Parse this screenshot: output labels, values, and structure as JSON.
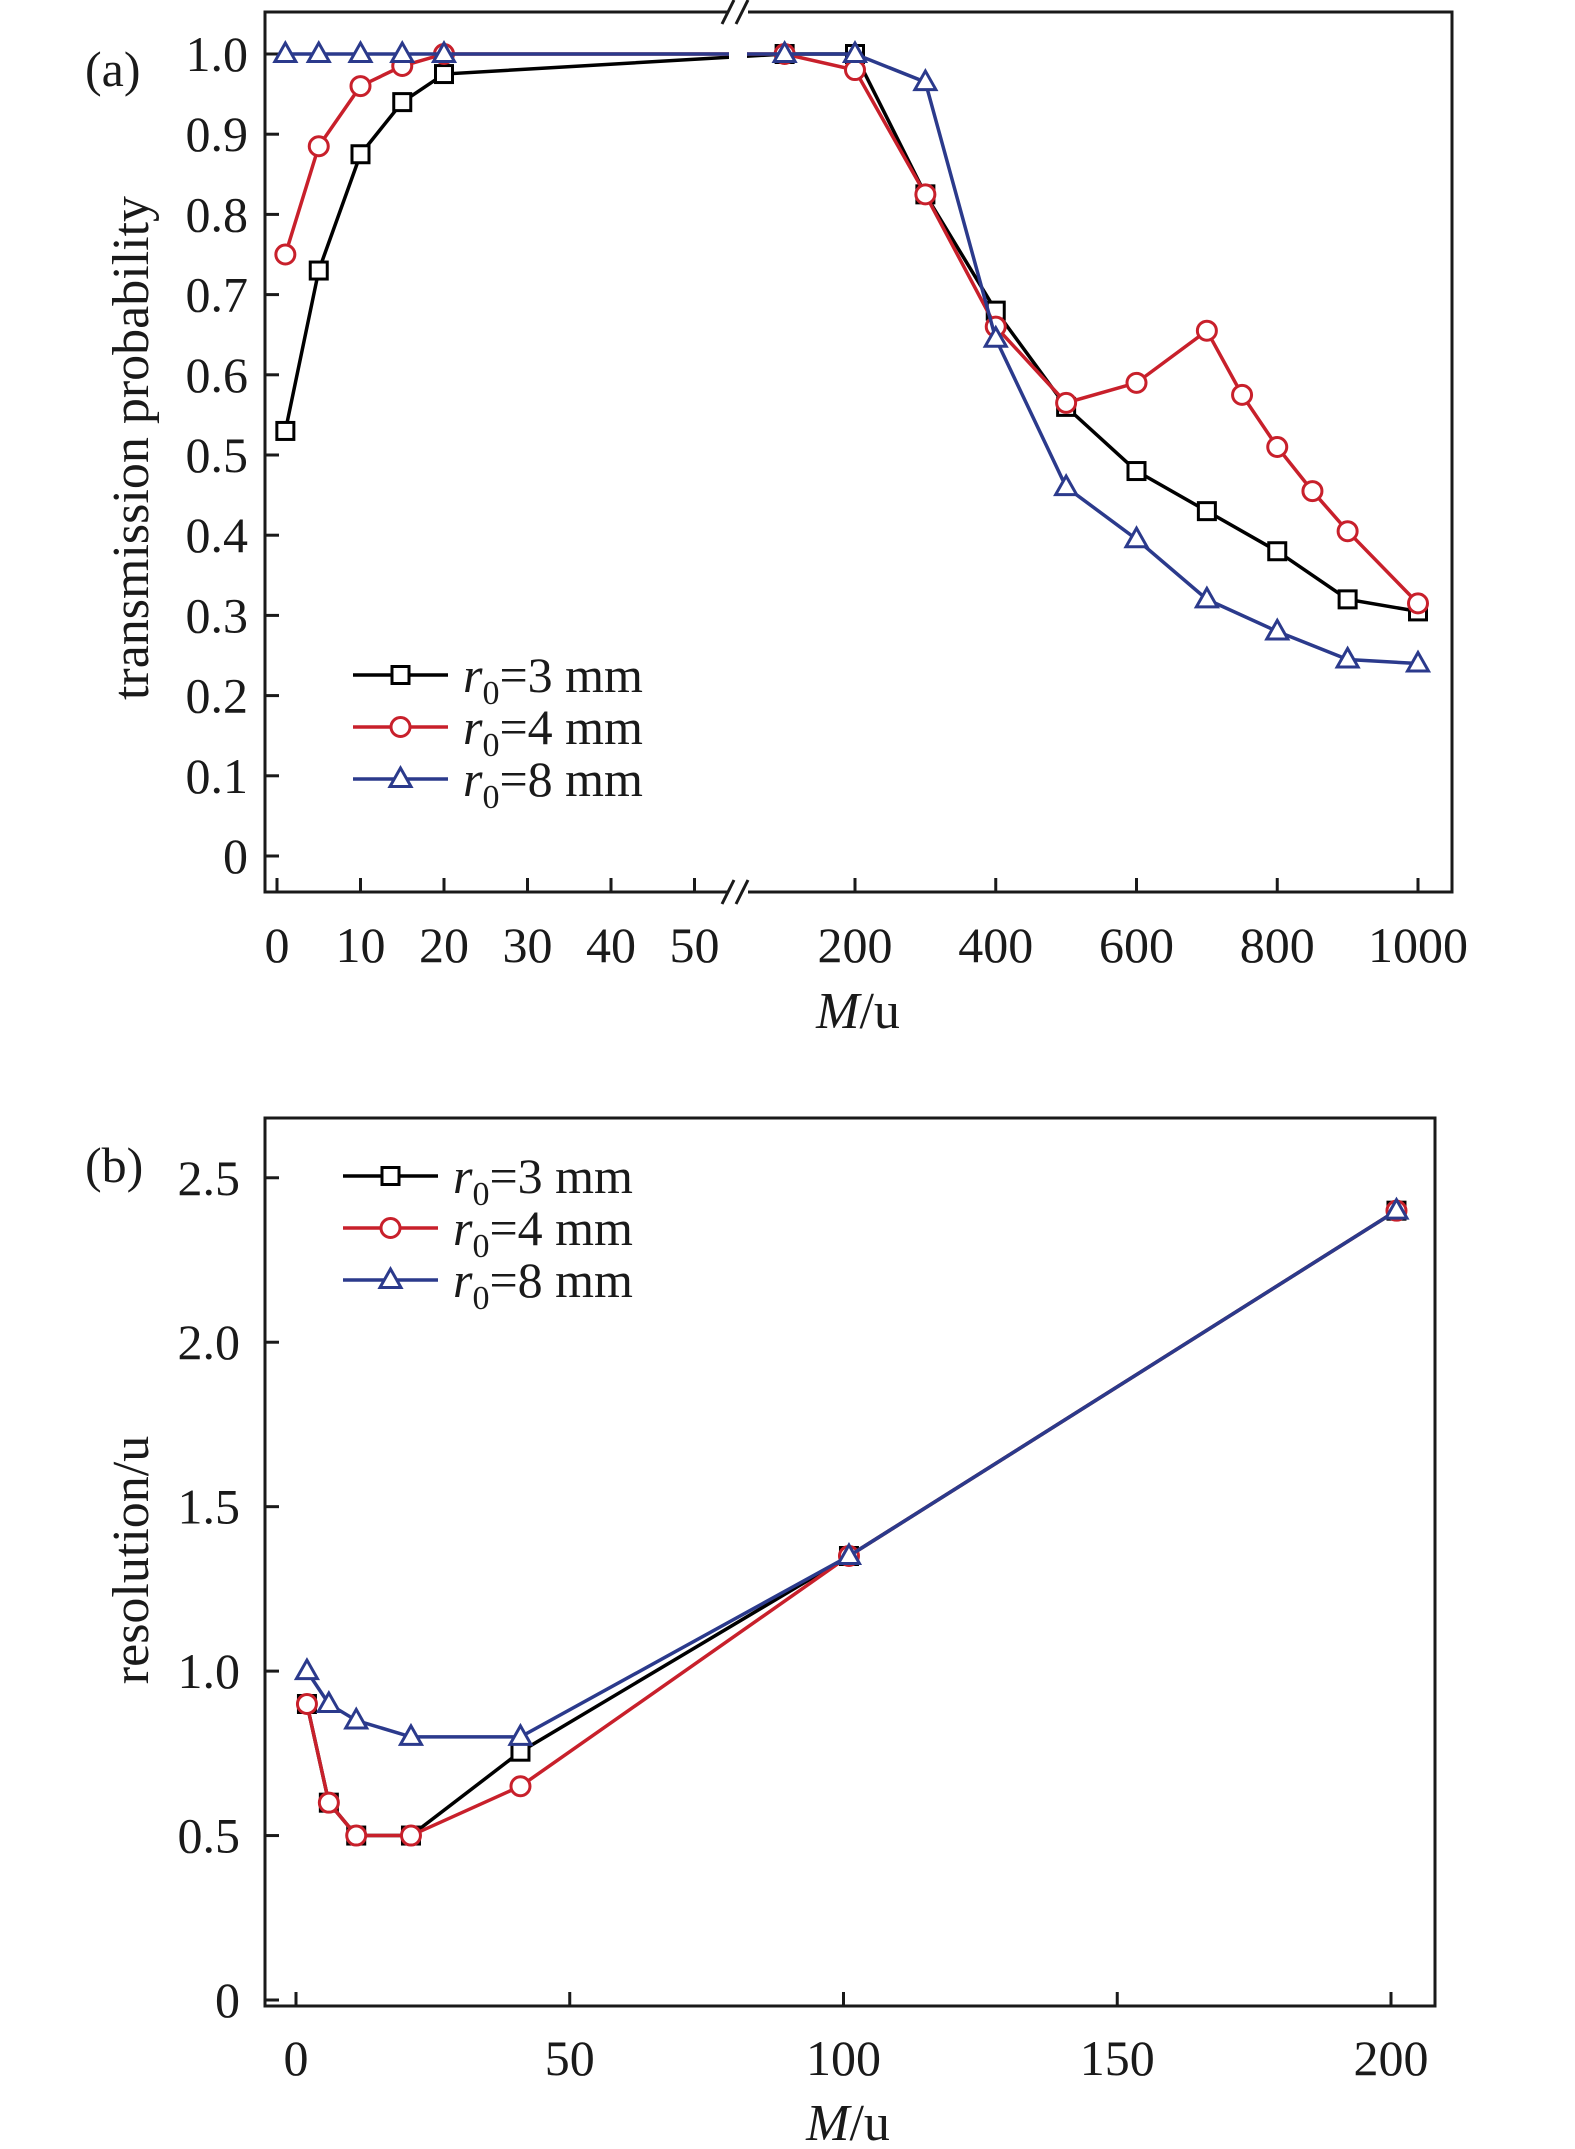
{
  "chart_data": [
    {
      "type": "line",
      "panel_label": "(a)",
      "xlabel_italic": "M",
      "xlabel_rest": "/u",
      "ylabel": "transmission probability",
      "ylim": [
        0,
        1.0
      ],
      "yticks": [
        "0",
        "0.1",
        "0.2",
        "0.3",
        "0.4",
        "0.5",
        "0.6",
        "0.7",
        "0.8",
        "0.9",
        "1.0"
      ],
      "x_axis": "broken",
      "x_segments": [
        {
          "range": [
            0,
            52
          ],
          "ticks": [
            0,
            10,
            20,
            30,
            40,
            50
          ],
          "tick_labels": [
            "0",
            "10",
            "20",
            "30",
            "40",
            "50"
          ]
        },
        {
          "range": [
            100,
            1000
          ],
          "ticks": [
            200,
            400,
            600,
            800,
            1000
          ],
          "tick_labels": [
            "200",
            "400",
            "600",
            "800",
            "1000"
          ]
        }
      ],
      "grid": false,
      "legend_position": "bottom-left",
      "series": [
        {
          "label_r": "r",
          "label_sub": "0",
          "label_rest": "=3 mm",
          "color": "#000000",
          "marker": "square",
          "x": [
            1,
            5,
            10,
            15,
            20,
            100,
            200,
            300,
            400,
            500,
            600,
            700,
            800,
            900,
            1000
          ],
          "y": [
            0.53,
            0.73,
            0.875,
            0.94,
            0.975,
            1.0,
            1.0,
            0.825,
            0.68,
            0.56,
            0.48,
            0.43,
            0.38,
            0.32,
            0.305
          ]
        },
        {
          "label_r": "r",
          "label_sub": "0",
          "label_rest": "=4 mm",
          "color": "#c8202b",
          "marker": "circle",
          "x": [
            1,
            5,
            10,
            15,
            20,
            100,
            200,
            300,
            400,
            500,
            600,
            700,
            750,
            800,
            850,
            900,
            1000
          ],
          "y": [
            0.75,
            0.885,
            0.96,
            0.985,
            1.0,
            1.0,
            0.98,
            0.825,
            0.66,
            0.565,
            0.59,
            0.655,
            0.575,
            0.51,
            0.455,
            0.405,
            0.315
          ]
        },
        {
          "label_r": "r",
          "label_sub": "0",
          "label_rest": "=8 mm",
          "color": "#2b3a8c",
          "marker": "triangle",
          "x": [
            1,
            5,
            10,
            15,
            20,
            100,
            200,
            300,
            400,
            500,
            600,
            700,
            800,
            900,
            1000
          ],
          "y": [
            1.0,
            1.0,
            1.0,
            1.0,
            1.0,
            1.0,
            1.0,
            0.965,
            0.645,
            0.46,
            0.395,
            0.32,
            0.28,
            0.245,
            0.24
          ]
        }
      ]
    },
    {
      "type": "line",
      "panel_label": "(b)",
      "xlabel_italic": "M",
      "xlabel_rest": "/u",
      "ylabel": "resolution/u",
      "xlim": [
        -6,
        208
      ],
      "ylim": [
        0,
        2.7
      ],
      "xticks": [
        0,
        50,
        100,
        150,
        200
      ],
      "xtick_labels": [
        "0",
        "50",
        "100",
        "150",
        "200"
      ],
      "yticks": [
        0,
        0.5,
        1.0,
        1.5,
        2.0,
        2.5
      ],
      "ytick_labels": [
        "0",
        "0.5",
        "1.0",
        "1.5",
        "2.0",
        "2.5"
      ],
      "grid": false,
      "legend_position": "top-left",
      "series": [
        {
          "label_r": "r",
          "label_sub": "0",
          "label_rest": "=3 mm",
          "color": "#000000",
          "marker": "square",
          "x": [
            2,
            6,
            11,
            21,
            41,
            101,
            201
          ],
          "y": [
            0.9,
            0.6,
            0.5,
            0.5,
            0.755,
            1.35,
            2.4
          ]
        },
        {
          "label_r": "r",
          "label_sub": "0",
          "label_rest": "=4 mm",
          "color": "#c8202b",
          "marker": "circle",
          "x": [
            2,
            6,
            11,
            21,
            41,
            101,
            201
          ],
          "y": [
            0.9,
            0.6,
            0.5,
            0.5,
            0.65,
            1.35,
            2.4
          ]
        },
        {
          "label_r": "r",
          "label_sub": "0",
          "label_rest": "=8 mm",
          "color": "#2b3a8c",
          "marker": "triangle",
          "x": [
            2,
            6,
            11,
            21,
            41,
            101,
            201
          ],
          "y": [
            1.0,
            0.9,
            0.85,
            0.8,
            0.8,
            1.35,
            2.4
          ]
        }
      ]
    }
  ]
}
